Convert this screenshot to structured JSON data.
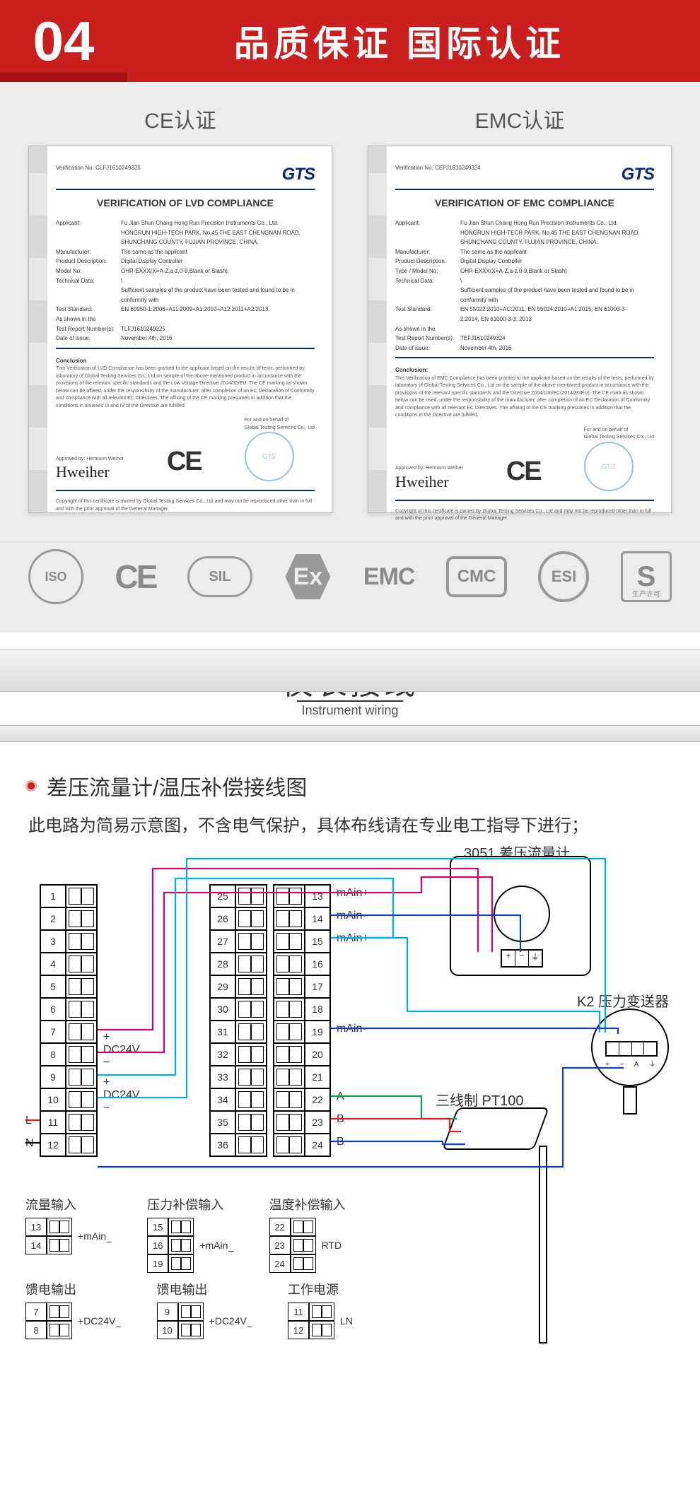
{
  "banner": {
    "num": "04",
    "title": "品质保证  国际认证"
  },
  "certs": {
    "left": {
      "label": "CE认证",
      "verif_no_label": "Verification No:",
      "verif_no": "CLFJ1610249325",
      "brand": "GTS",
      "heading": "VERIFICATION OF LVD COMPLIANCE",
      "rows": [
        {
          "k": "Applicant:",
          "v": "Fu Jian Shun Chang Hong Run Precision Instruments Co., Ltd. HONGRUN HIGH-TECH PARK, No.45 THE EAST CHENGNAN ROAD, SHUNCHANG COUNTY, FUJIAN PROVINCE, CHINA."
        },
        {
          "k": "Manufacturer:",
          "v": "The same as the applicant"
        },
        {
          "k": "Product Description:",
          "v": "Digital Display Controller"
        },
        {
          "k": "Model No:",
          "v": "OHR-EXXX(X=A-Z,a-z,0-9,Blank or Slash)."
        },
        {
          "k": "Technical Data:",
          "v": "\\"
        },
        {
          "k": "",
          "v": "Sufficient samples of the product have been tested and found to be in conformity with"
        },
        {
          "k": "Test Standard:",
          "v": "EN 60950-1:2006+A11:2009+A1:2010+A12:2011+A2:2013."
        },
        {
          "k": "As shown in the",
          "v": ""
        },
        {
          "k": "Test Report Number(s):",
          "v": "TLFJ1610249325"
        },
        {
          "k": "Date of issue:",
          "v": "November 4th, 2016"
        }
      ],
      "conclusion_h": "Conclusion",
      "conclusion": "This Verification of LVD Compliance has been granted to the applicant based on the results of tests, performed by laboratory of Global Testing Services Co., Ltd on sample of the above-mentioned product in accordance with the provisions of the relevant specific standards and the Low Voltage Directive 2014/35/EU. The CE marking as shown below can be affixed, under the responsibility of the manufacturer, after completion of an EC Declaration of Conformity and compliance with all relevant EC Directives. The affixing of the CE marking presumes in addition that the conditions in annexes III and IV of the Directive are fulfilled.",
      "approved_label": "Approved by: Hermann Weiher",
      "behalf": "For and on behalf of\nGlobal Testing Services Co., Ltd",
      "foot": "Copyright of this certificate is owned by Global Testing Services Co., Ltd and may not be reproduced other than in full and with the prior approval of the General Manager."
    },
    "right": {
      "label": "EMC认证",
      "verif_no_label": "Verification No:",
      "verif_no": "CEFJ1610249324",
      "brand": "GTS",
      "heading": "VERIFICATION OF EMC COMPLIANCE",
      "rows": [
        {
          "k": "Applicant:",
          "v": "Fu Jian Shun Chang Hong Run Precision Instruments Co., Ltd. HONGRUN HIGH-TECH PARK, No.45 THE EAST CHENGNAN ROAD, SHUNCHANG COUNTY, FUJIAN PROVINCE, CHINA."
        },
        {
          "k": "Manufacturer:",
          "v": "The same as the applicant"
        },
        {
          "k": "Product Description:",
          "v": "Digital Display Controller"
        },
        {
          "k": "Type / Model No:",
          "v": "OHR-EXXX(X=A-Z,a-z,0-9,Blank or Slash)"
        },
        {
          "k": "Technical Data:",
          "v": "\\"
        },
        {
          "k": "",
          "v": "Sufficient samples of the product have been tested and found to be in conformity with"
        },
        {
          "k": "Test Standard:",
          "v": "EN 55022:2010+AC:2011, EN 55024:2010+A1:2015, EN 61000-3-2:2014, EN 61000-3-3: 2013"
        },
        {
          "k": "As shown in the",
          "v": ""
        },
        {
          "k": "Test Report Number(s):",
          "v": "TEFJ1610249324"
        },
        {
          "k": "Date of issue:",
          "v": "November 4th, 2016"
        }
      ],
      "conclusion_h": "Conclusion:",
      "conclusion": "This Verification of EMC Compliance has been granted to the applicant based on the results of the tests, performed by laboratory of Global Testing Services Co., Ltd on the sample of the above-mentioned product in accordance with the provisions of the relevant specific standards and the Directive 2004/108/EC(2014/30/EU). The CE mark as shown below can be used, under the responsibility of the manufacturer, after completion of an EC Declaration of Conformity and compliance with all relevant EC Directives. The affixing of the CE marking presumes in addition that the conditions in the Directive are fulfilled.",
      "approved_label": "Approved by: Hermann Weiher",
      "behalf": "For and on behalf of\nGlobal Testing Services Co., Ltd",
      "foot": "Copyright of this certificate is owned by Global Testing Services Co., Ltd and may not be reproduced other than in full and with the prior approval of the General Manager."
    }
  },
  "logos": {
    "iso": "ISO",
    "ce": "CE",
    "sil": "SIL",
    "ex": "Ex",
    "emc": "EMC",
    "cmc": "CMC",
    "esi": "ESI",
    "s": "S",
    "s_sub": "生产许可"
  },
  "wiring": {
    "title_cn": "仪表接线",
    "title_en": "Instrument wiring",
    "bullet_title": "差压流量计/温压补偿接线图",
    "sub_note": "此电路为简易示意图，不含电气保护，具体布线请在专业电工指导下进行；",
    "term_left": [
      "1",
      "2",
      "3",
      "4",
      "5",
      "6",
      "7",
      "8",
      "9",
      "10",
      "11",
      "12"
    ],
    "term_mid": [
      "25",
      "26",
      "27",
      "28",
      "29",
      "30",
      "31",
      "32",
      "33",
      "34",
      "35",
      "36"
    ],
    "term_right": [
      "13",
      "14",
      "15",
      "16",
      "17",
      "18",
      "19",
      "20",
      "21",
      "22",
      "23",
      "24"
    ],
    "row_labels_left": {
      "dc24v_a": "DC24V",
      "dc24v_b": "DC24V",
      "L": "L",
      "N": "N"
    },
    "row_labels_right": {
      "main_p1": "mAin+",
      "main_n1": "mAin-",
      "main_p2": "mAin+",
      "main_n2": "mAin-",
      "A": "A",
      "B1": "B",
      "B2": "B"
    },
    "devices": {
      "d3051": "3051 差压流量计",
      "k2": "K2 压力变送器",
      "pt100": "三线制 PT100"
    },
    "legend": {
      "flow_in": "流量输入",
      "flow_terms": [
        "13",
        "14"
      ],
      "flow_lbl": "mAin",
      "press_in": "压力补偿输入",
      "press_terms": [
        "15",
        "16",
        "19"
      ],
      "press_lbl": "mAin",
      "temp_in": "温度补偿输入",
      "temp_terms": [
        "22",
        "23",
        "24"
      ],
      "temp_lbl": "RTD",
      "feed_a": "馈电输出",
      "feed_a_terms": [
        "7",
        "8"
      ],
      "feed_a_lbl": "DC24V",
      "feed_b": "馈电输出",
      "feed_b_terms": [
        "9",
        "10"
      ],
      "feed_b_lbl": "DC24V",
      "power": "工作电源",
      "power_terms": [
        "11",
        "12"
      ],
      "power_L": "L",
      "power_N": "N"
    },
    "colors": {
      "magenta": "#d6006c",
      "red": "#e02020",
      "cyan": "#00aee6",
      "blue": "#1040c0",
      "green": "#00a050",
      "black": "#000000"
    }
  }
}
